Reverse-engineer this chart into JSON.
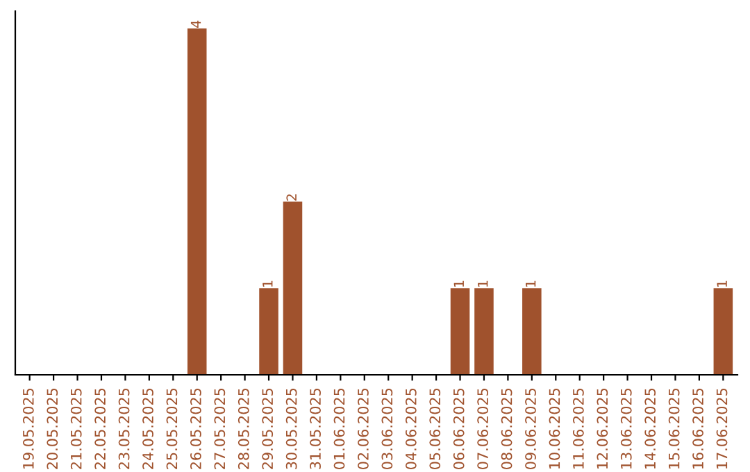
{
  "chart_data": {
    "type": "bar",
    "categories": [
      "19.05.2025",
      "20.05.2025",
      "21.05.2025",
      "22.05.2025",
      "23.05.2025",
      "24.05.2025",
      "25.05.2025",
      "26.05.2025",
      "27.05.2025",
      "28.05.2025",
      "29.05.2025",
      "30.05.2025",
      "31.05.2025",
      "01.06.2025",
      "02.06.2025",
      "03.06.2025",
      "04.06.2025",
      "05.06.2025",
      "06.06.2025",
      "07.06.2025",
      "08.06.2025",
      "09.06.2025",
      "10.06.2025",
      "11.06.2025",
      "12.06.2025",
      "13.06.2025",
      "14.06.2025",
      "15.06.2025",
      "16.06.2025",
      "17.06.2025"
    ],
    "values": [
      0,
      0,
      0,
      0,
      0,
      0,
      0,
      4,
      0,
      0,
      1,
      2,
      0,
      0,
      0,
      0,
      0,
      0,
      1,
      1,
      0,
      1,
      0,
      0,
      0,
      0,
      0,
      0,
      0,
      1
    ],
    "value_labels": [
      null,
      null,
      null,
      null,
      null,
      null,
      null,
      "4",
      null,
      null,
      "1",
      "2",
      null,
      null,
      null,
      null,
      null,
      null,
      "1",
      "1",
      null,
      "1",
      null,
      null,
      null,
      null,
      null,
      null,
      null,
      "1"
    ],
    "color": "#a0522d",
    "tick_labels": "x",
    "grid": false,
    "legend": false
  }
}
